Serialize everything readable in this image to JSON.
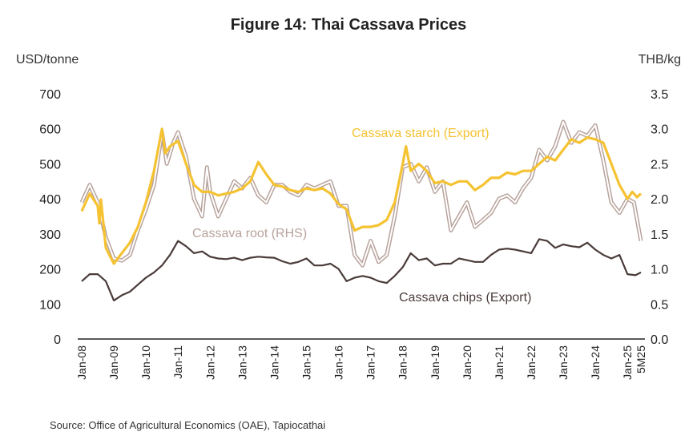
{
  "title": "Figure 14: Thai Cassava Prices",
  "y_left_unit": "USD/tonne",
  "y_right_unit": "THB/kg",
  "source": "Source: Office of Agricultural Economics (OAE), Tapiocathai",
  "colors": {
    "starch": "#f5c231",
    "root_outer": "#b8a39c",
    "root_inner": "#ffffff",
    "chips": "#4a3c3a",
    "axis": "#222222"
  },
  "chart_data": {
    "type": "line",
    "title": "Figure 14: Thai Cassava Prices",
    "ylabel_left": "USD/tonne",
    "ylabel_right": "THB/kg",
    "ylim_left": [
      0,
      700
    ],
    "ylim_right": [
      0.0,
      3.5
    ],
    "yticks_left": [
      "0",
      "100",
      "200",
      "300",
      "400",
      "500",
      "600",
      "700"
    ],
    "yticks_right": [
      "0.0",
      "0.5",
      "1.0",
      "1.5",
      "2.0",
      "2.5",
      "3.0",
      "3.5"
    ],
    "xticks": [
      "Jan-08",
      "Jan-09",
      "Jan-10",
      "Jan-11",
      "Jan-12",
      "Jan-13",
      "Jan-14",
      "Jan-15",
      "Jan-16",
      "Jan-17",
      "Jan-18",
      "Jan-19",
      "Jan-20",
      "Jan-21",
      "Jan-22",
      "Jan-23",
      "Jan-24",
      "Jan-25",
      "5M25"
    ],
    "grid": false,
    "series": [
      {
        "name": "Cassava starch (Export)",
        "axis": "left",
        "color": "#f5c231",
        "points": [
          [
            2008.0,
            365
          ],
          [
            2008.25,
            415
          ],
          [
            2008.5,
            380
          ],
          [
            2008.55,
            330
          ],
          [
            2008.6,
            398
          ],
          [
            2008.75,
            260
          ],
          [
            2009.0,
            215
          ],
          [
            2009.25,
            245
          ],
          [
            2009.5,
            275
          ],
          [
            2009.75,
            320
          ],
          [
            2010.0,
            390
          ],
          [
            2010.25,
            480
          ],
          [
            2010.5,
            600
          ],
          [
            2010.6,
            530
          ],
          [
            2010.75,
            550
          ],
          [
            2011.0,
            565
          ],
          [
            2011.25,
            500
          ],
          [
            2011.5,
            440
          ],
          [
            2011.75,
            420
          ],
          [
            2012.0,
            420
          ],
          [
            2012.25,
            410
          ],
          [
            2012.5,
            415
          ],
          [
            2012.75,
            420
          ],
          [
            2013.0,
            430
          ],
          [
            2013.25,
            450
          ],
          [
            2013.5,
            505
          ],
          [
            2013.75,
            470
          ],
          [
            2014.0,
            440
          ],
          [
            2014.25,
            435
          ],
          [
            2014.5,
            425
          ],
          [
            2014.75,
            420
          ],
          [
            2015.0,
            430
          ],
          [
            2015.25,
            425
          ],
          [
            2015.5,
            430
          ],
          [
            2015.75,
            415
          ],
          [
            2016.0,
            385
          ],
          [
            2016.25,
            370
          ],
          [
            2016.5,
            310
          ],
          [
            2016.75,
            320
          ],
          [
            2017.0,
            320
          ],
          [
            2017.25,
            325
          ],
          [
            2017.5,
            340
          ],
          [
            2017.75,
            390
          ],
          [
            2018.0,
            500
          ],
          [
            2018.1,
            550
          ],
          [
            2018.25,
            480
          ],
          [
            2018.5,
            500
          ],
          [
            2018.75,
            480
          ],
          [
            2019.0,
            445
          ],
          [
            2019.25,
            450
          ],
          [
            2019.5,
            440
          ],
          [
            2019.75,
            450
          ],
          [
            2020.0,
            450
          ],
          [
            2020.25,
            425
          ],
          [
            2020.5,
            440
          ],
          [
            2020.75,
            460
          ],
          [
            2021.0,
            460
          ],
          [
            2021.25,
            475
          ],
          [
            2021.5,
            470
          ],
          [
            2021.75,
            480
          ],
          [
            2022.0,
            480
          ],
          [
            2022.25,
            500
          ],
          [
            2022.5,
            520
          ],
          [
            2022.75,
            510
          ],
          [
            2023.0,
            540
          ],
          [
            2023.25,
            570
          ],
          [
            2023.5,
            560
          ],
          [
            2023.75,
            575
          ],
          [
            2024.0,
            570
          ],
          [
            2024.25,
            560
          ],
          [
            2024.5,
            500
          ],
          [
            2024.75,
            440
          ],
          [
            2025.0,
            400
          ],
          [
            2025.15,
            420
          ],
          [
            2025.3,
            405
          ],
          [
            2025.42,
            415
          ]
        ]
      },
      {
        "name": "Cassava root (RHS)",
        "axis": "right",
        "color": "#b8a39c",
        "points": [
          [
            2008.0,
            1.95
          ],
          [
            2008.25,
            2.2
          ],
          [
            2008.5,
            1.95
          ],
          [
            2008.75,
            1.45
          ],
          [
            2009.0,
            1.15
          ],
          [
            2009.25,
            1.12
          ],
          [
            2009.5,
            1.2
          ],
          [
            2009.75,
            1.55
          ],
          [
            2010.0,
            1.85
          ],
          [
            2010.25,
            2.2
          ],
          [
            2010.5,
            2.95
          ],
          [
            2010.65,
            2.5
          ],
          [
            2010.85,
            2.8
          ],
          [
            2011.0,
            2.95
          ],
          [
            2011.25,
            2.6
          ],
          [
            2011.5,
            2.0
          ],
          [
            2011.75,
            1.75
          ],
          [
            2011.9,
            2.45
          ],
          [
            2012.0,
            2.1
          ],
          [
            2012.25,
            1.75
          ],
          [
            2012.5,
            2.0
          ],
          [
            2012.75,
            2.25
          ],
          [
            2013.0,
            2.15
          ],
          [
            2013.25,
            2.3
          ],
          [
            2013.5,
            2.05
          ],
          [
            2013.75,
            1.95
          ],
          [
            2014.0,
            2.2
          ],
          [
            2014.25,
            2.2
          ],
          [
            2014.5,
            2.1
          ],
          [
            2014.75,
            2.05
          ],
          [
            2015.0,
            2.2
          ],
          [
            2015.25,
            2.15
          ],
          [
            2015.5,
            2.2
          ],
          [
            2015.75,
            2.25
          ],
          [
            2016.0,
            1.9
          ],
          [
            2016.25,
            1.9
          ],
          [
            2016.5,
            1.2
          ],
          [
            2016.75,
            1.05
          ],
          [
            2017.0,
            1.4
          ],
          [
            2017.25,
            1.1
          ],
          [
            2017.5,
            1.2
          ],
          [
            2017.75,
            1.75
          ],
          [
            2018.0,
            2.45
          ],
          [
            2018.25,
            2.5
          ],
          [
            2018.5,
            2.25
          ],
          [
            2018.75,
            2.45
          ],
          [
            2019.0,
            2.1
          ],
          [
            2019.25,
            2.25
          ],
          [
            2019.5,
            1.55
          ],
          [
            2019.75,
            1.75
          ],
          [
            2020.0,
            1.95
          ],
          [
            2020.25,
            1.6
          ],
          [
            2020.5,
            1.7
          ],
          [
            2020.75,
            1.8
          ],
          [
            2021.0,
            2.0
          ],
          [
            2021.25,
            2.05
          ],
          [
            2021.5,
            1.95
          ],
          [
            2021.75,
            2.15
          ],
          [
            2022.0,
            2.3
          ],
          [
            2022.25,
            2.7
          ],
          [
            2022.5,
            2.55
          ],
          [
            2022.75,
            2.75
          ],
          [
            2023.0,
            3.1
          ],
          [
            2023.25,
            2.8
          ],
          [
            2023.5,
            2.95
          ],
          [
            2023.75,
            2.9
          ],
          [
            2024.0,
            3.05
          ],
          [
            2024.25,
            2.55
          ],
          [
            2024.5,
            1.95
          ],
          [
            2024.75,
            1.8
          ],
          [
            2025.0,
            2.0
          ],
          [
            2025.2,
            1.95
          ],
          [
            2025.42,
            1.4
          ]
        ]
      },
      {
        "name": "Cassava chips (Export)",
        "axis": "left",
        "color": "#4a3c3a",
        "points": [
          [
            2008.0,
            165
          ],
          [
            2008.25,
            185
          ],
          [
            2008.5,
            185
          ],
          [
            2008.75,
            165
          ],
          [
            2009.0,
            110
          ],
          [
            2009.25,
            125
          ],
          [
            2009.5,
            135
          ],
          [
            2009.75,
            155
          ],
          [
            2010.0,
            175
          ],
          [
            2010.25,
            190
          ],
          [
            2010.5,
            210
          ],
          [
            2010.75,
            240
          ],
          [
            2011.0,
            280
          ],
          [
            2011.25,
            265
          ],
          [
            2011.5,
            245
          ],
          [
            2011.75,
            250
          ],
          [
            2012.0,
            235
          ],
          [
            2012.25,
            230
          ],
          [
            2012.5,
            228
          ],
          [
            2012.75,
            232
          ],
          [
            2013.0,
            225
          ],
          [
            2013.25,
            232
          ],
          [
            2013.5,
            235
          ],
          [
            2013.75,
            233
          ],
          [
            2014.0,
            232
          ],
          [
            2014.25,
            222
          ],
          [
            2014.5,
            215
          ],
          [
            2014.75,
            220
          ],
          [
            2015.0,
            230
          ],
          [
            2015.25,
            210
          ],
          [
            2015.5,
            210
          ],
          [
            2015.75,
            215
          ],
          [
            2016.0,
            200
          ],
          [
            2016.25,
            165
          ],
          [
            2016.5,
            175
          ],
          [
            2016.75,
            180
          ],
          [
            2017.0,
            175
          ],
          [
            2017.25,
            165
          ],
          [
            2017.5,
            160
          ],
          [
            2017.75,
            180
          ],
          [
            2018.0,
            205
          ],
          [
            2018.25,
            245
          ],
          [
            2018.5,
            225
          ],
          [
            2018.75,
            230
          ],
          [
            2019.0,
            210
          ],
          [
            2019.25,
            215
          ],
          [
            2019.5,
            215
          ],
          [
            2019.75,
            230
          ],
          [
            2020.0,
            225
          ],
          [
            2020.25,
            220
          ],
          [
            2020.5,
            220
          ],
          [
            2020.75,
            240
          ],
          [
            2021.0,
            255
          ],
          [
            2021.25,
            258
          ],
          [
            2021.5,
            255
          ],
          [
            2021.75,
            250
          ],
          [
            2022.0,
            245
          ],
          [
            2022.25,
            285
          ],
          [
            2022.5,
            280
          ],
          [
            2022.75,
            260
          ],
          [
            2023.0,
            270
          ],
          [
            2023.25,
            265
          ],
          [
            2023.5,
            262
          ],
          [
            2023.75,
            275
          ],
          [
            2024.0,
            255
          ],
          [
            2024.25,
            240
          ],
          [
            2024.5,
            230
          ],
          [
            2024.75,
            240
          ],
          [
            2025.0,
            185
          ],
          [
            2025.25,
            182
          ],
          [
            2025.42,
            190
          ]
        ]
      }
    ],
    "annotations": [
      {
        "text": "Cassava starch (Export)",
        "series": 0
      },
      {
        "text": "Cassava root (RHS)",
        "series": 1
      },
      {
        "text": "Cassava chips (Export)",
        "series": 2
      }
    ]
  }
}
